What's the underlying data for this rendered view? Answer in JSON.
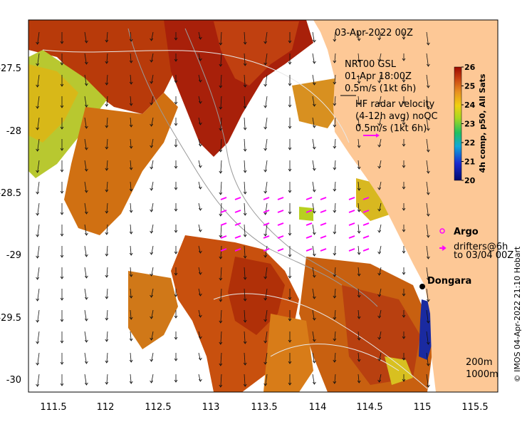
{
  "map": {
    "title": "03-Apr-2022 00Z",
    "x_ticks": [
      "111.5",
      "112",
      "112.5",
      "113",
      "113.5",
      "114",
      "114.5",
      "115",
      "115.5"
    ],
    "y_ticks": [
      "-27.5",
      "-28",
      "-28.5",
      "-29",
      "-29.5",
      "-30"
    ],
    "extent": {
      "lon": [
        111.33,
        115.62
      ],
      "lat": [
        -27.13,
        -30.17
      ]
    }
  },
  "annotations": {
    "wind_model": "NRT00 GSL",
    "wind_time": "01-Apr 18:00Z",
    "wind_scale": "0.5m/s (1kt 6h)",
    "radar_line1": "HF radar velocity",
    "radar_line2": "(4-12h avg) noQC",
    "radar_scale": "0.5m/s (1kt 6h)",
    "argo_label": "Argo",
    "drifters_line1": "drifters@6h",
    "drifters_line2": "to 03/04 00Z",
    "place": "Dongara",
    "contour_200": "200m",
    "contour_1000": "1000m"
  },
  "colorbar": {
    "label": "4h comp, p50, All Sats",
    "ticks": [
      "20",
      "21",
      "22",
      "23",
      "24",
      "25",
      "26"
    ],
    "range": [
      20,
      26
    ]
  },
  "credit": "© IMOS 04-Apr-2022 21:10 Hobart",
  "colors": {
    "land": "#fdc896",
    "argo": "#ff00ff",
    "drifter": "#ff00ff"
  }
}
